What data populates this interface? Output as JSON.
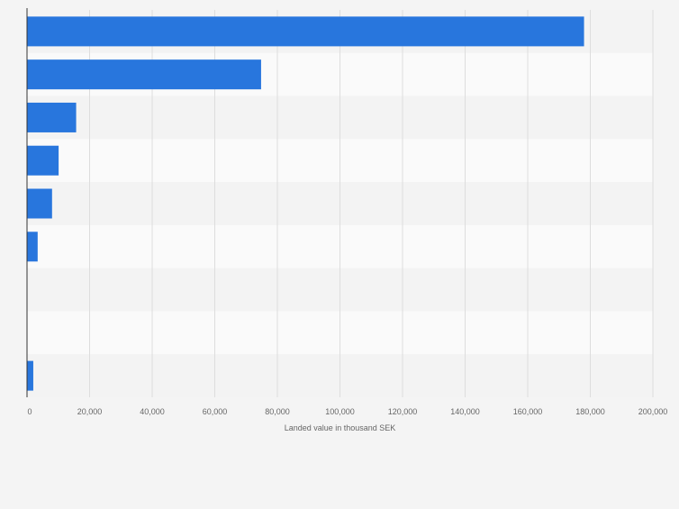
{
  "colors": {
    "background": "#f4f4f4",
    "band_light": "#fafafa",
    "band_dark": "#f3f3f3",
    "bar": "#2876dd",
    "grid": "#dddddd",
    "axis": "#333333",
    "text": "#666666"
  },
  "chart_data": {
    "type": "bar",
    "orientation": "horizontal",
    "title": "",
    "xlabel": "Landed value in thousand SEK",
    "ylabel": "",
    "xlim": [
      0,
      200000
    ],
    "xticks": [
      0,
      20000,
      40000,
      60000,
      80000,
      100000,
      120000,
      140000,
      160000,
      180000,
      200000
    ],
    "xtick_labels": [
      "0",
      "20,000",
      "40,000",
      "60,000",
      "80,000",
      "100,000",
      "120,000",
      "140,000",
      "160,000",
      "180,000",
      "200,000"
    ],
    "categories": [
      "",
      "",
      "",
      "",
      "",
      "",
      "",
      "",
      ""
    ],
    "values": [
      178000,
      74800,
      15700,
      10100,
      8000,
      3400,
      0,
      0,
      2000
    ],
    "grid": true,
    "legend": "none"
  }
}
